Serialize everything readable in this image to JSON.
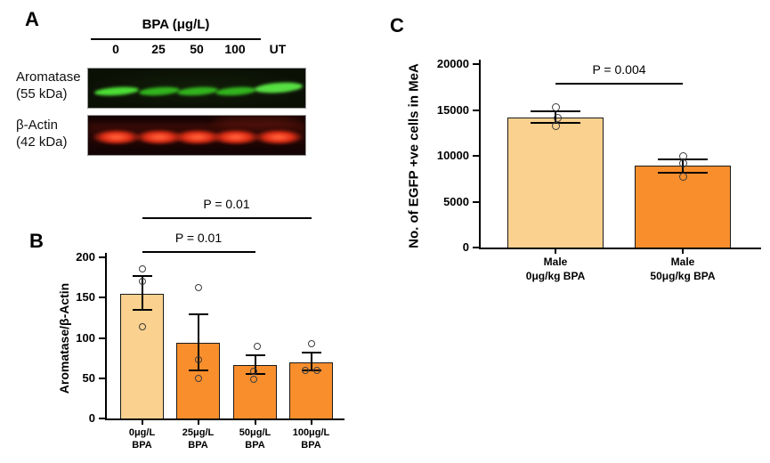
{
  "panels": {
    "a": {
      "label": "A",
      "treatment_header": "BPA (μg/L)",
      "lane_labels": [
        "0",
        "25",
        "50",
        "100",
        "UT"
      ],
      "rows": [
        {
          "protein": "Aromatase",
          "weight": "(55 kDa)",
          "channel": "green"
        },
        {
          "protein": "β-Actin",
          "weight": "(42 kDa)",
          "channel": "red"
        }
      ],
      "band_intensities": {
        "aromatase": [
          0.9,
          0.52,
          0.5,
          0.5,
          1.0
        ],
        "beta_actin": [
          1,
          1,
          1,
          1,
          1
        ]
      }
    }
  },
  "chart_data": [
    {
      "id": "panel_b",
      "type": "bar",
      "panel_label": "B",
      "ylabel": "Aromatase/β-Actin",
      "xlabel": "",
      "ylim": [
        0,
        200
      ],
      "yticks": [
        0,
        50,
        100,
        150,
        200
      ],
      "categories": [
        [
          "0μg/L",
          "BPA"
        ],
        [
          "25μg/L",
          "BPA"
        ],
        [
          "50μg/L",
          "BPA"
        ],
        [
          "100μg/L",
          "BPA"
        ]
      ],
      "values": [
        155,
        94,
        66,
        70
      ],
      "errors_low": [
        135,
        60,
        55,
        60
      ],
      "errors_high": [
        177,
        129,
        79,
        82
      ],
      "points": [
        [
          [
            186,
            0
          ],
          [
            170,
            0
          ],
          [
            114,
            0
          ]
        ],
        [
          [
            162,
            0
          ],
          [
            73,
            0
          ],
          [
            50,
            0
          ]
        ],
        [
          [
            90,
            2
          ],
          [
            59,
            -2
          ],
          [
            49,
            -2
          ]
        ],
        [
          [
            93,
            0
          ],
          [
            60,
            -7
          ],
          [
            60,
            6
          ]
        ]
      ],
      "bar_colors": [
        "#FAD18E",
        "#F98E2D",
        "#F98E2D",
        "#F98E2D"
      ],
      "significance": [
        {
          "from": 0,
          "to": 2,
          "y": 208,
          "label": "P = 0.01"
        },
        {
          "from": 0,
          "to": 3,
          "y": 250,
          "label": "P = 0.01"
        }
      ],
      "grid": false,
      "legend": "none"
    },
    {
      "id": "panel_c",
      "type": "bar",
      "panel_label": "C",
      "ylabel": "No. of EGFP +ve cells in MeA",
      "xlabel": "",
      "ylim": [
        0,
        20000
      ],
      "yticks": [
        0,
        5000,
        10000,
        15000,
        20000
      ],
      "categories": [
        [
          "Male",
          "0μg/kg BPA"
        ],
        [
          "Male",
          "50μg/kg BPA"
        ]
      ],
      "values": [
        14200,
        8900
      ],
      "errors_low": [
        13600,
        8200
      ],
      "errors_high": [
        14900,
        9600
      ],
      "points": [
        [
          [
            15300,
            0
          ],
          [
            14100,
            2
          ],
          [
            13300,
            0
          ]
        ],
        [
          [
            10000,
            0
          ],
          [
            9200,
            0
          ],
          [
            7700,
            0
          ]
        ]
      ],
      "bar_colors": [
        "#FAD18E",
        "#F98E2D"
      ],
      "significance": [
        {
          "from": 0,
          "to": 1,
          "y": 17950,
          "label": "P = 0.004"
        }
      ],
      "grid": false,
      "legend": "none"
    }
  ],
  "colors": {
    "bar_light": "#FAD18E",
    "bar_orange": "#F98E2D",
    "band_green": "#4CDB3C",
    "band_red": "#D8361F",
    "axis": "#000000"
  }
}
